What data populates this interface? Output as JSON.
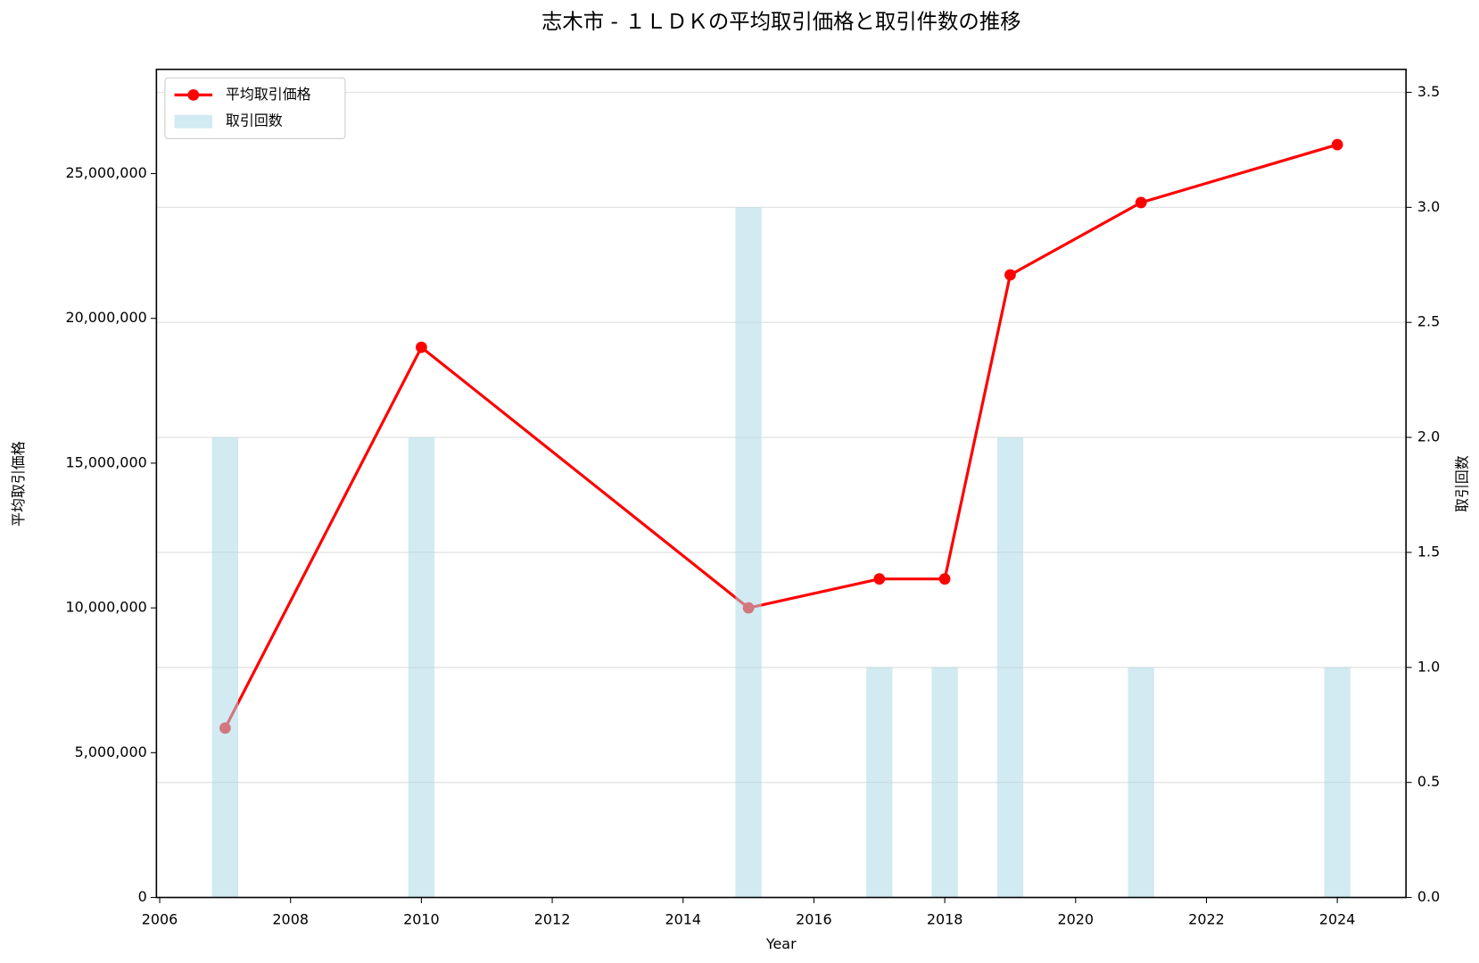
{
  "chart_data": {
    "type": "line",
    "title": "志木市 - １ＬＤＫの平均取引価格と取引件数の推移",
    "x_label": "Year",
    "y_label": "平均取引価格",
    "y2_label": "取引回数",
    "x": [
      2007,
      2010,
      2015,
      2017,
      2018,
      2019,
      2021,
      2024
    ],
    "series": [
      {
        "name": "平均取引価格",
        "type": "line",
        "color": "#ff0000",
        "axis": "y",
        "values": [
          5850000,
          19000000,
          10000000,
          11000000,
          11000000,
          21500000,
          24000000,
          26000000
        ]
      },
      {
        "name": "取引回数",
        "type": "bar",
        "color": "#add8e6",
        "axis": "y2",
        "values": [
          2,
          2,
          3,
          1,
          1,
          2,
          1,
          1
        ]
      }
    ],
    "xlim": [
      2005.95,
      2025.05
    ],
    "xticks": [
      2006,
      2008,
      2010,
      2012,
      2014,
      2016,
      2018,
      2020,
      2022,
      2024
    ],
    "ylim": [
      0,
      28600000
    ],
    "yticks": [
      0,
      {
        "value": 5000000,
        "label": "5,000,000"
      },
      {
        "value": 10000000,
        "label": "10,000,000"
      },
      {
        "value": 15000000,
        "label": "15,000,000"
      },
      {
        "value": 20000000,
        "label": "20,000,000"
      },
      {
        "value": 25000000,
        "label": "25,000,000"
      }
    ],
    "y2lim": [
      0,
      3.6
    ],
    "y2ticks": [
      {
        "value": 0,
        "label": "0.0"
      },
      0.5,
      {
        "value": 1,
        "label": "1.0"
      },
      1.5,
      {
        "value": 2,
        "label": "2.0"
      },
      2.5,
      {
        "value": 3,
        "label": "3.0"
      },
      3.5
    ],
    "y_color": "#990000",
    "y2_color": "#00008b",
    "grid": true,
    "legend": "upper-left"
  }
}
